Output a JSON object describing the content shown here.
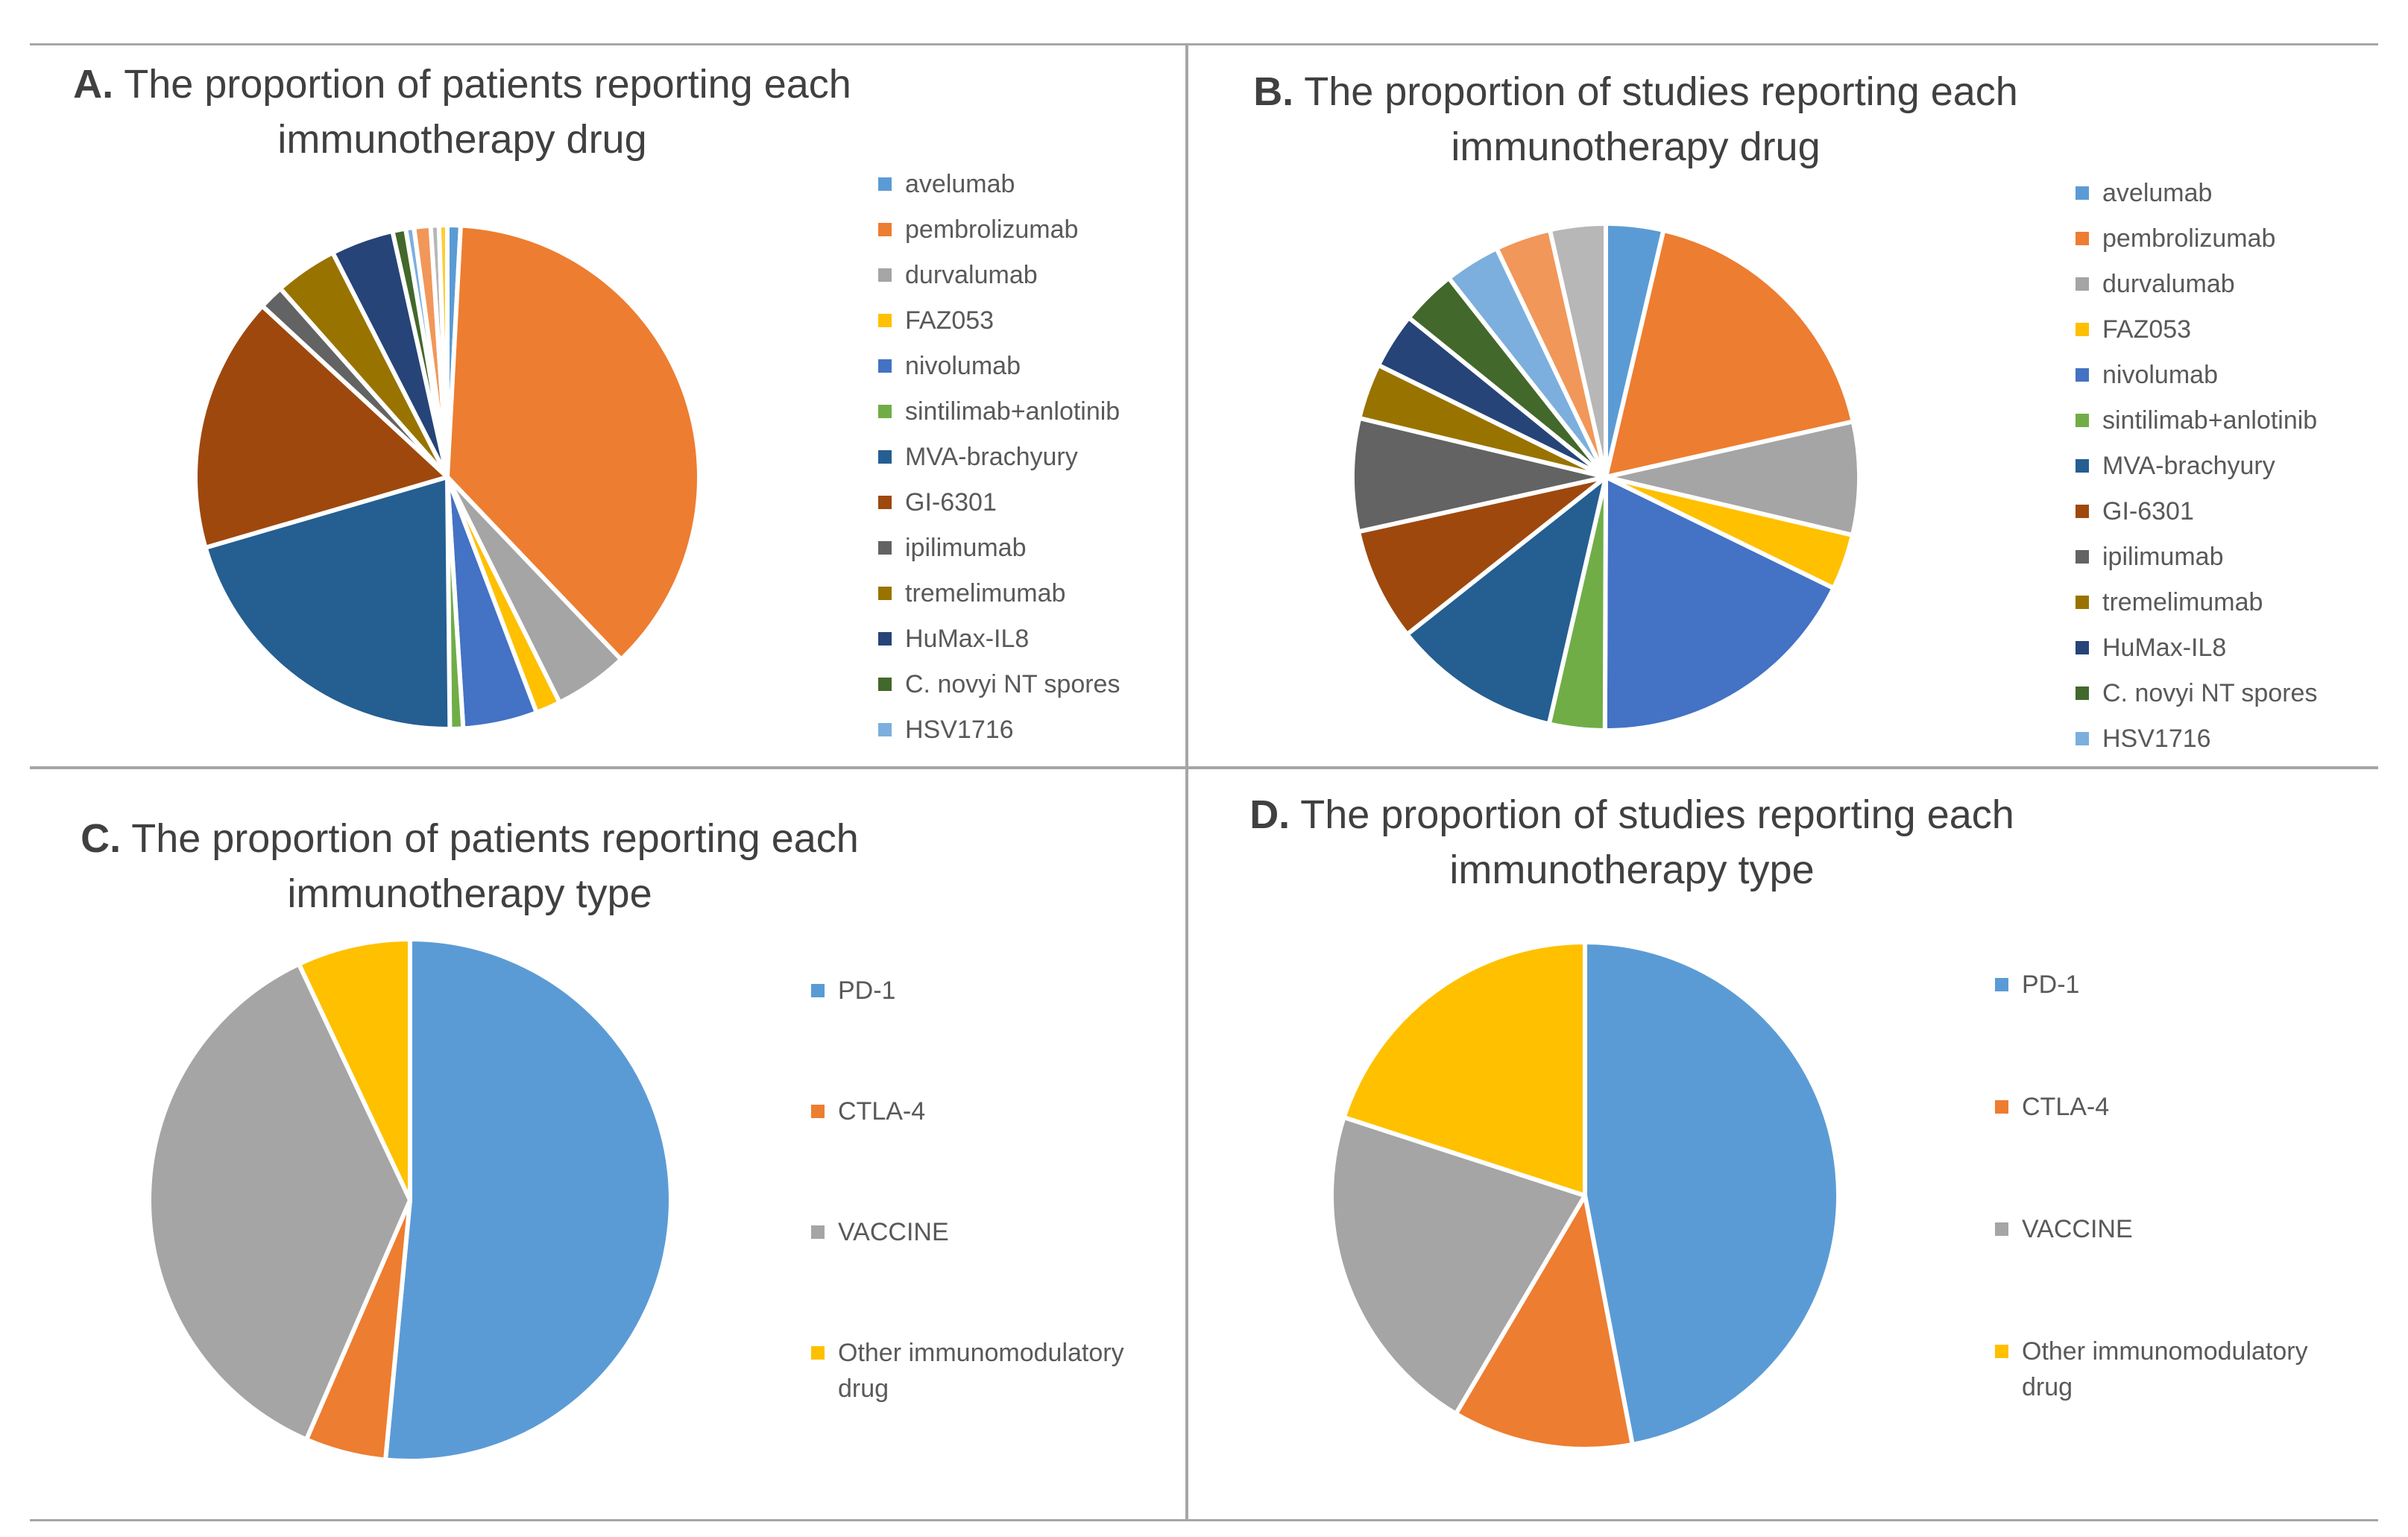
{
  "figure": {
    "panels": {
      "A": {
        "letter": "A.",
        "title_line1": "The proportion of patients reporting each",
        "title_line2": "immunotherapy drug"
      },
      "B": {
        "letter": "B.",
        "title_line1": "The proportion of studies reporting each",
        "title_line2": "immunotherapy drug"
      },
      "C": {
        "letter": "C.",
        "title_line1": "The proportion of patients reporting each",
        "title_line2": "immunotherapy type"
      },
      "D": {
        "letter": "D.",
        "title_line1": "The proportion of studies reporting each",
        "title_line2": "immunotherapy type"
      }
    }
  },
  "chart_data": [
    {
      "panel": "A",
      "type": "pie",
      "title": "A. The proportion of patients reporting each immunotherapy drug",
      "legend_position": "right",
      "categories": [
        "avelumab",
        "pembrolizumab",
        "durvalumab",
        "FAZ053",
        "nivolumab",
        "sintilimab+anlotinib",
        "MVA-brachyury",
        "GI-6301",
        "ipilimumab",
        "tremelimumab",
        "HuMax-IL8",
        "C. novyi    NT spores",
        "HSV1716",
        "(unlabeled)",
        "(unlabeled)",
        "(unlabeled)"
      ],
      "values": [
        0.8,
        35.0,
        4.5,
        1.5,
        4.5,
        0.8,
        19.5,
        15.5,
        1.5,
        3.8,
        3.8,
        0.8,
        0.5,
        1.0,
        0.5,
        0.5
      ],
      "colors": [
        "#5b9bd5",
        "#ed7d31",
        "#a5a5a5",
        "#ffc000",
        "#4472c4",
        "#70ad47",
        "#255e91",
        "#9e480e",
        "#636363",
        "#997300",
        "#264478",
        "#43682b",
        "#7cafdd",
        "#f1975a",
        "#b7b7b7",
        "#ffcd33"
      ]
    },
    {
      "panel": "B",
      "type": "pie",
      "title": "B. The proportion of studies reporting each immunotherapy drug",
      "legend_position": "right",
      "categories": [
        "avelumab",
        "pembrolizumab",
        "durvalumab",
        "FAZ053",
        "nivolumab",
        "sintilimab+anlotinib",
        "MVA-brachyury",
        "GI-6301",
        "ipilimumab",
        "tremelimumab",
        "HuMax-IL8",
        "C. novyi    NT spores",
        "HSV1716",
        "(unlabeled)",
        "(unlabeled)"
      ],
      "values": [
        3.3,
        16.1,
        6.5,
        3.2,
        16.1,
        3.2,
        9.7,
        6.5,
        6.5,
        3.2,
        3.2,
        3.2,
        3.2,
        3.2,
        3.2
      ],
      "colors": [
        "#5b9bd5",
        "#ed7d31",
        "#a5a5a5",
        "#ffc000",
        "#4472c4",
        "#70ad47",
        "#255e91",
        "#9e480e",
        "#636363",
        "#997300",
        "#264478",
        "#43682b",
        "#7cafdd",
        "#f1975a",
        "#b7b7b7"
      ]
    },
    {
      "panel": "C",
      "type": "pie",
      "title": "C. The proportion of patients reporting each immunotherapy type",
      "legend_position": "right",
      "categories": [
        "PD-1",
        "CTLA-4",
        "VACCINE",
        "Other immunomodulatory drug"
      ],
      "legend_labels": [
        [
          "PD-1"
        ],
        [
          "CTLA-4"
        ],
        [
          "VACCINE"
        ],
        [
          "Other immunomodulatory",
          "drug"
        ]
      ],
      "values": [
        51.5,
        5.0,
        36.5,
        7.0
      ],
      "colors": [
        "#5b9bd5",
        "#ed7d31",
        "#a5a5a5",
        "#ffc000"
      ]
    },
    {
      "panel": "D",
      "type": "pie",
      "title": "D. The proportion of studies reporting each immunotherapy type",
      "legend_position": "right",
      "categories": [
        "PD-1",
        "CTLA-4",
        "VACCINE",
        "Other immunomodulatory drug"
      ],
      "legend_labels": [
        [
          "PD-1"
        ],
        [
          "CTLA-4"
        ],
        [
          "VACCINE"
        ],
        [
          "Other immunomodulatory",
          "drug"
        ]
      ],
      "values": [
        47.0,
        11.5,
        21.5,
        20.0
      ],
      "colors": [
        "#5b9bd5",
        "#ed7d31",
        "#a5a5a5",
        "#ffc000"
      ]
    }
  ]
}
